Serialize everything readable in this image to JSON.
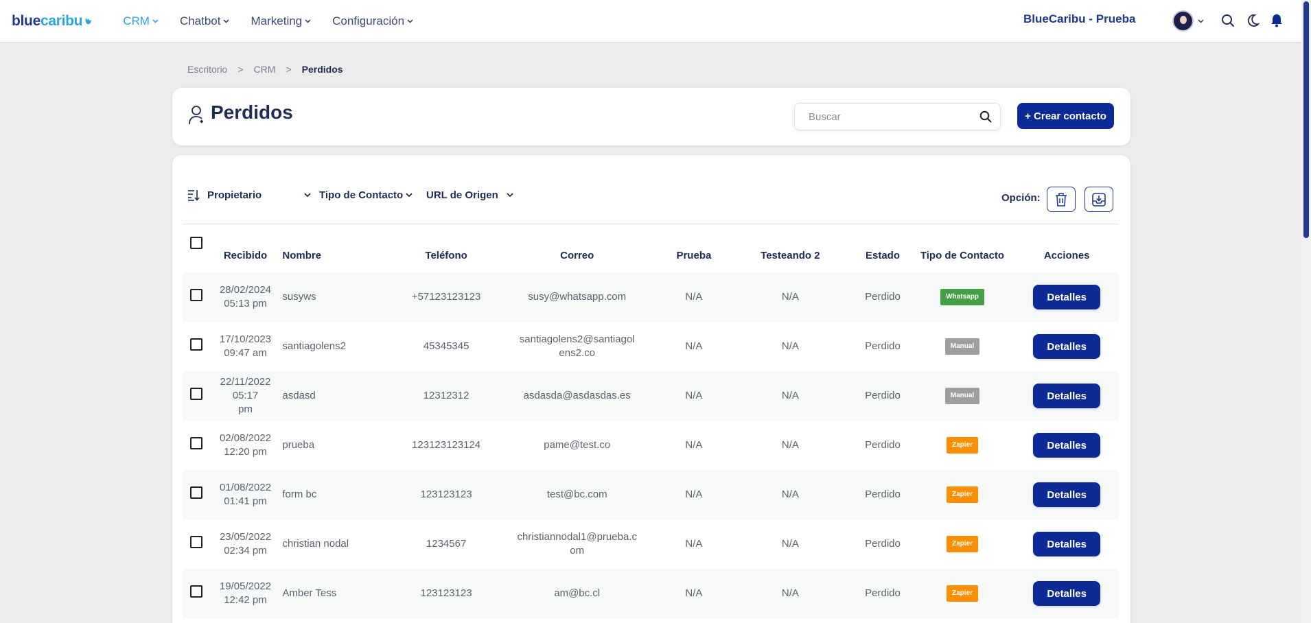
{
  "brand": {
    "part1": "blue",
    "part2": "caribu"
  },
  "nav": [
    {
      "label": "CRM",
      "active": true
    },
    {
      "label": "Chatbot",
      "active": false
    },
    {
      "label": "Marketing",
      "active": false
    },
    {
      "label": "Configuración",
      "active": false
    }
  ],
  "account_name": "BlueCaribu - Prueba",
  "breadcrumb": {
    "items": [
      "Escritorio",
      "CRM",
      "Perdidos"
    ],
    "separator": ">"
  },
  "page": {
    "title": "Perdidos"
  },
  "search": {
    "placeholder": "Buscar"
  },
  "create_button": "+ Crear contacto",
  "filters": [
    "Propietario",
    "Tipo de Contacto",
    "URL de Origen"
  ],
  "options_label": "Opción:",
  "columns": [
    "Recibido",
    "Nombre",
    "Teléfono",
    "Correo",
    "Prueba",
    "Testeando 2",
    "Estado",
    "Tipo de Contacto",
    "Acciones"
  ],
  "rows": [
    {
      "received": [
        "28/02/2024",
        "05:13 pm"
      ],
      "name": "susyws",
      "phone": "+57123123123",
      "email": [
        "susy@whatsapp.com"
      ],
      "prueba": "N/A",
      "testeando": "N/A",
      "estado": "Perdido",
      "tipo": "Whatsapp",
      "tipo_color": "#43a047",
      "action": "Detalles"
    },
    {
      "received": [
        "17/10/2023",
        "09:47 am"
      ],
      "name": "santiagolens2",
      "phone": "45345345",
      "email": [
        "santiagolens2@santiagol",
        "ens2.co"
      ],
      "prueba": "N/A",
      "testeando": "N/A",
      "estado": "Perdido",
      "tipo": "Manual",
      "tipo_color": "#9e9e9e",
      "action": "Detalles"
    },
    {
      "received": [
        "22/11/2022 05:17",
        "pm"
      ],
      "name": "asdasd",
      "phone": "12312312",
      "email": [
        "asdasda@asdasdas.es"
      ],
      "prueba": "N/A",
      "testeando": "N/A",
      "estado": "Perdido",
      "tipo": "Manual",
      "tipo_color": "#9e9e9e",
      "action": "Detalles"
    },
    {
      "received": [
        "02/08/2022",
        "12:20 pm"
      ],
      "name": "prueba",
      "phone": "123123123124",
      "email": [
        "pame@test.co"
      ],
      "prueba": "N/A",
      "testeando": "N/A",
      "estado": "Perdido",
      "tipo": "Zapier",
      "tipo_color": "#ff8f00",
      "action": "Detalles"
    },
    {
      "received": [
        "01/08/2022",
        "01:41 pm"
      ],
      "name": "form bc",
      "phone": "123123123",
      "email": [
        "test@bc.com"
      ],
      "prueba": "N/A",
      "testeando": "N/A",
      "estado": "Perdido",
      "tipo": "Zapier",
      "tipo_color": "#ff8f00",
      "action": "Detalles"
    },
    {
      "received": [
        "23/05/2022",
        "02:34 pm"
      ],
      "name": "christian nodal",
      "phone": "1234567",
      "email": [
        "christiannodal1@prueba.c",
        "om"
      ],
      "prueba": "N/A",
      "testeando": "N/A",
      "estado": "Perdido",
      "tipo": "Zapier",
      "tipo_color": "#ff8f00",
      "action": "Detalles"
    },
    {
      "received": [
        "19/05/2022",
        "12:42 pm"
      ],
      "name": "Amber Tess",
      "phone": "123123123",
      "email": [
        "am@bc.cl"
      ],
      "prueba": "N/A",
      "testeando": "N/A",
      "estado": "Perdido",
      "tipo": "Zapier",
      "tipo_color": "#ff8f00",
      "action": "Detalles"
    }
  ],
  "colors": {
    "primary": "#0b2a96",
    "brand_dark": "#1d3a8f",
    "brand_light": "#2aa6e0"
  }
}
